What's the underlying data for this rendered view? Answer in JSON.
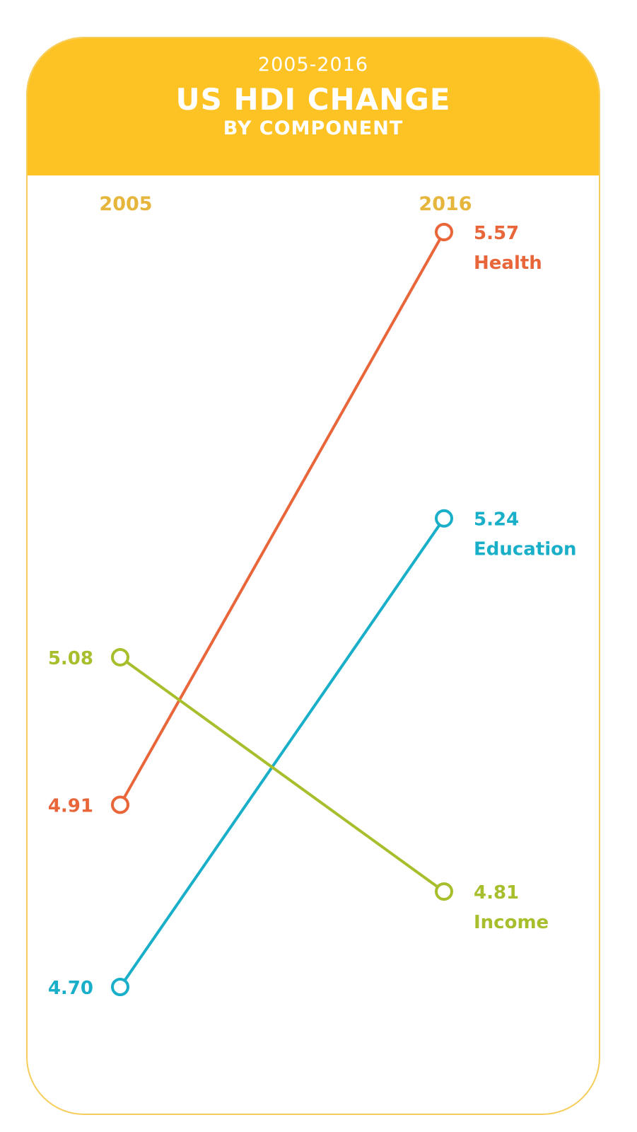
{
  "header": {
    "period": "2005-2016",
    "title": "US HDI CHANGE",
    "subtitle": "BY COMPONENT",
    "bg_color": "#fdc324"
  },
  "colors": {
    "year_label": "#e6b53b",
    "border": "#f6cd5a"
  },
  "chart_data": {
    "type": "line",
    "subtype": "slope",
    "x": [
      "2005",
      "2016"
    ],
    "series": [
      {
        "name": "Health",
        "values": [
          4.91,
          5.57
        ],
        "color": "#e8663a",
        "start_label": "4.91",
        "end_label": "5.57"
      },
      {
        "name": "Education",
        "values": [
          4.7,
          5.24
        ],
        "color": "#19afc9",
        "start_label": "4.70",
        "end_label": "5.24"
      },
      {
        "name": "Income",
        "values": [
          5.08,
          4.81
        ],
        "color": "#a9be2d",
        "start_label": "5.08",
        "end_label": "4.81"
      }
    ],
    "title": "US HDI CHANGE",
    "subtitle": "BY COMPONENT",
    "xlabel": "",
    "ylabel": "",
    "grid": false
  }
}
